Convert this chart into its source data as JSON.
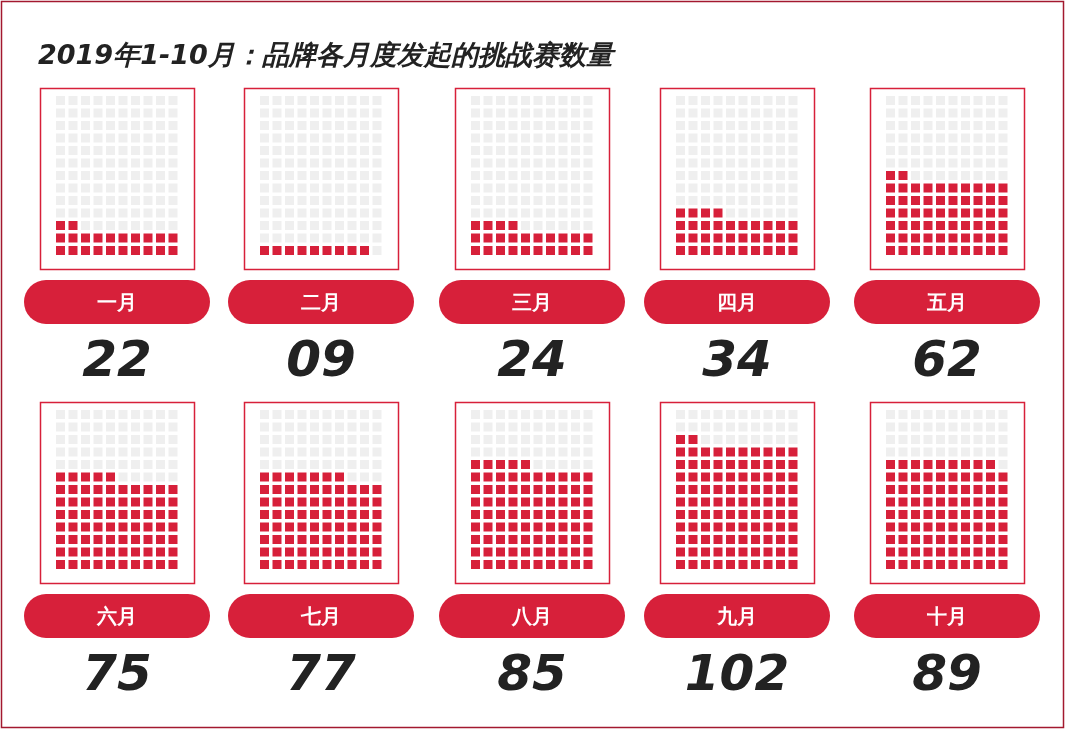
{
  "chart_data": {
    "type": "other",
    "title": "2019年1-10月：品牌各月度发起的挑战赛数量",
    "categories": [
      "一月",
      "二月",
      "三月",
      "四月",
      "五月",
      "六月",
      "七月",
      "八月",
      "九月",
      "十月"
    ],
    "values": [
      22,
      9,
      24,
      34,
      62,
      75,
      77,
      85,
      102,
      89
    ],
    "value_labels": [
      "22",
      "09",
      "24",
      "34",
      "62",
      "75",
      "77",
      "85",
      "102",
      "89"
    ],
    "color": "#d7203a"
  }
}
